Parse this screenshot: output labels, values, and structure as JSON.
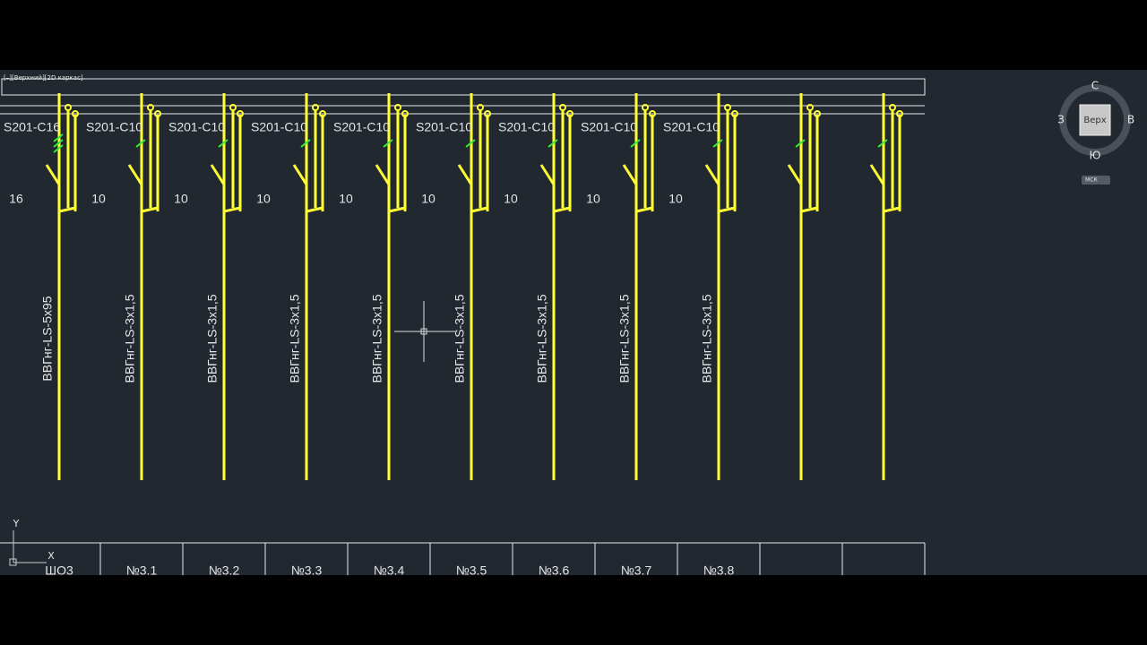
{
  "viewport": {
    "label": "[–][Верхний][2D каркас]"
  },
  "columns": [
    {
      "breaker": "S201-C16",
      "current": "16",
      "cable": "ВВГнг-LS-5x95",
      "label": "ШО3"
    },
    {
      "breaker": "S201-C10",
      "current": "10",
      "cable": "ВВГнг-LS-3x1,5",
      "label": "№3.1"
    },
    {
      "breaker": "S201-C10",
      "current": "10",
      "cable": "ВВГнг-LS-3x1,5",
      "label": "№3.2"
    },
    {
      "breaker": "S201-C10",
      "current": "10",
      "cable": "ВВГнг-LS-3x1,5",
      "label": "№3.3"
    },
    {
      "breaker": "S201-C10",
      "current": "10",
      "cable": "ВВГнг-LS-3x1,5",
      "label": "№3.4"
    },
    {
      "breaker": "S201-C10",
      "current": "10",
      "cable": "ВВГнг-LS-3x1,5",
      "label": "№3.5"
    },
    {
      "breaker": "S201-C10",
      "current": "10",
      "cable": "ВВГнг-LS-3x1,5",
      "label": "№3.6"
    },
    {
      "breaker": "S201-C10",
      "current": "10",
      "cable": "ВВГнг-LS-3x1,5",
      "label": "№3.7"
    },
    {
      "breaker": "S201-C10",
      "current": "10",
      "cable": "ВВГнг-LS-3x1,5",
      "label": "№3.8"
    },
    {},
    {}
  ],
  "viewcube": {
    "north": "С",
    "west": "З",
    "east": "В",
    "south": "Ю",
    "face": "Верх",
    "ucs": "МСК"
  },
  "ucs_icon": {
    "y": "Y",
    "x": "X"
  }
}
